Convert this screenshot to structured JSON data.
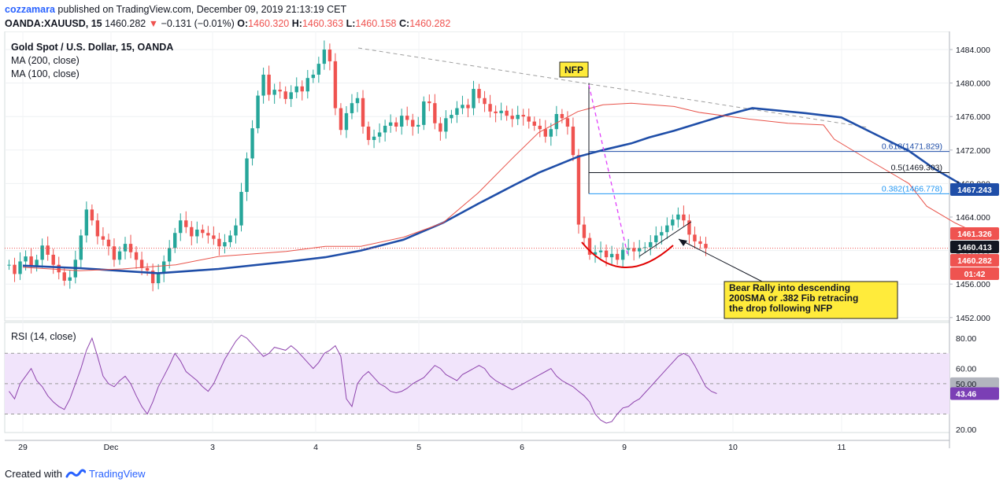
{
  "header": {
    "user": "cozzamara",
    "published_text": "published on TradingView.com, December 09, 2019 21:13:19 CET",
    "symbol": "OANDA:XAUUSD, 15",
    "last_price": "1460.282",
    "change": "−0.131 (−0.01%)",
    "o_label": "O:",
    "o_value": "1460.320",
    "h_label": "H:",
    "h_value": "1460.363",
    "l_label": "L:",
    "l_value": "1460.158",
    "c_label": "C:",
    "c_value": "1460.282"
  },
  "legend": {
    "title": "Gold Spot / U.S. Dollar, 15, OANDA",
    "ma200": "MA (200, close)",
    "ma100": "MA (100, close)",
    "rsi": "RSI (14, close)"
  },
  "footer": {
    "created_with": "Created with",
    "brand": "TradingView"
  },
  "colors": {
    "up": "#26a69a",
    "down": "#ef5350",
    "ma200": "#1f4ea8",
    "ma100": "#e8534a",
    "rsi_line": "#8e44ad",
    "rsi_band": "#f1e4fb",
    "fib_blue": "#1f4ea8",
    "nfp_box": "#ffeb3b",
    "annotation_box": "#ffeb3b",
    "cup": "#e00000",
    "nfp_line": "#e040fb"
  },
  "chart_data": [
    {
      "type": "candlestick",
      "title": "Gold Spot / U.S. Dollar, 15, OANDA",
      "ylim": [
        1450.6,
        1485.4
      ],
      "y_ticks": [
        "1484.000",
        "1480.000",
        "1476.000",
        "1472.000",
        "1468.000",
        "1464.000",
        "1460.000",
        "1456.000",
        "1452.000"
      ],
      "x_ticks": [
        "29",
        "Dec",
        "3",
        "4",
        "5",
        "6",
        "9",
        "10",
        "11"
      ],
      "series": [
        {
          "name": "MA (200, close)",
          "x": [
            0,
            1.6,
            3.8,
            5.5,
            7.5,
            8.5,
            9.5,
            10.7,
            11.8,
            12.8,
            13.8,
            14.5,
            15.6,
            16.3,
            17.1,
            17.6,
            18.3,
            19.6,
            20.5,
            22.0,
            23.0,
            23.9,
            24.9,
            25.6,
            26.5
          ],
          "y": [
            1458.2,
            1457.9,
            1457.3,
            1457.8,
            1458.7,
            1459.2,
            1460.0,
            1461.3,
            1463.3,
            1465.6,
            1467.8,
            1469.3,
            1471.2,
            1472.0,
            1472.8,
            1473.5,
            1474.3,
            1476.0,
            1477.0,
            1476.4,
            1475.9,
            1474.0,
            1471.9,
            1469.8,
            1467.6
          ]
        },
        {
          "name": "MA (100, close)",
          "x": [
            0,
            1.6,
            2.8,
            4.3,
            5.5,
            7.4,
            8.5,
            9.5,
            10.7,
            11.8,
            12.8,
            13.8,
            14.5,
            15.6,
            16.3,
            17.1,
            18.3,
            19.0,
            20.4,
            21.5,
            22.5,
            22.8,
            23.7,
            24.9,
            25.4,
            26.2,
            27.2
          ],
          "y": [
            1458.0,
            1457.6,
            1457.8,
            1458.3,
            1459.3,
            1459.9,
            1460.5,
            1460.5,
            1461.6,
            1463.3,
            1466.9,
            1471.2,
            1474.1,
            1476.6,
            1477.4,
            1477.6,
            1477.2,
            1476.5,
            1475.7,
            1475.2,
            1475.0,
            1473.3,
            1471.0,
            1468.0,
            1465.3,
            1463.3,
            1461.3
          ]
        }
      ],
      "closes": [
        1458.3,
        1457.2,
        1458.7,
        1459.3,
        1458.1,
        1458.9,
        1460.6,
        1459.5,
        1458.3,
        1457.4,
        1456.4,
        1456.8,
        1458.9,
        1461.8,
        1464.9,
        1463.6,
        1461.7,
        1461.3,
        1460.5,
        1458.9,
        1459.9,
        1460.8,
        1459.8,
        1458.9,
        1457.9,
        1457.6,
        1456.1,
        1457.3,
        1458.7,
        1460.3,
        1462.1,
        1463.6,
        1462.8,
        1461.7,
        1462.5,
        1462.1,
        1461.8,
        1461.4,
        1460.5,
        1461.0,
        1461.8,
        1463.0,
        1467.0,
        1471.0,
        1474.6,
        1478.5,
        1481.0,
        1478.6,
        1479.2,
        1479.0,
        1478.1,
        1478.9,
        1479.6,
        1479.0,
        1480.6,
        1481.0,
        1482.3,
        1484.0,
        1482.6,
        1477.0,
        1474.4,
        1476.4,
        1477.6,
        1478.2,
        1474.8,
        1473.2,
        1473.6,
        1474.1,
        1474.9,
        1475.3,
        1474.8,
        1476.1,
        1475.6,
        1474.8,
        1475.0,
        1477.8,
        1477.6,
        1475.2,
        1474.2,
        1475.8,
        1476.2,
        1477.0,
        1477.4,
        1477.0,
        1479.3,
        1478.2,
        1477.5,
        1476.6,
        1476.4,
        1476.7,
        1476.1,
        1475.7,
        1476.2,
        1476.0,
        1475.4,
        1474.9,
        1474.5,
        1473.6,
        1474.5,
        1476.3,
        1475.8,
        1474.8,
        1471.4,
        1463.1,
        1461.5,
        1459.5,
        1459.8,
        1460.0,
        1459.2,
        1459.6,
        1458.9,
        1460.1,
        1460.3,
        1459.9,
        1460.3,
        1460.4,
        1461.0,
        1461.8,
        1462.2,
        1463.0,
        1463.7,
        1464.3,
        1463.6,
        1461.9,
        1461.1,
        1460.8,
        1460.3
      ],
      "annotations": [
        {
          "label": "NFP",
          "x": 21.6,
          "y": 1481.5
        },
        {
          "label": "0.618(1471.829)",
          "price": 1471.829
        },
        {
          "label": "0.5(1469.303)",
          "price": 1469.303
        },
        {
          "label": "0.382(1466.778)",
          "price": 1466.778
        },
        {
          "label": "Bear Rally into descending 200SMA or .382 Fib retracing the drop following NFP",
          "lines": [
            "Bear Rally into descending",
            "200SMA or .382 Fib retracing",
            "the drop following NFP"
          ]
        }
      ],
      "price_labels": [
        {
          "value": "1467.243"
        },
        {
          "value": "1461.326"
        },
        {
          "value": "1460.413"
        },
        {
          "value": "1460.282"
        },
        {
          "value": "01:42"
        }
      ]
    },
    {
      "type": "line",
      "title": "RSI (14, close)",
      "ylim": [
        17,
        86
      ],
      "y_ticks": [
        "80.00",
        "60.00",
        "50.00",
        "20.00"
      ],
      "band": [
        30,
        70
      ],
      "series": [
        {
          "name": "RSI (14, close)",
          "value_label": "43.46",
          "y": [
            45,
            40,
            50,
            55,
            60,
            52,
            48,
            42,
            38,
            35,
            33,
            40,
            50,
            60,
            72,
            80,
            68,
            55,
            50,
            48,
            52,
            55,
            50,
            42,
            35,
            30,
            38,
            48,
            55,
            62,
            70,
            65,
            58,
            55,
            52,
            48,
            45,
            50,
            58,
            66,
            72,
            78,
            82,
            80,
            76,
            72,
            68,
            70,
            74,
            73,
            72,
            75,
            72,
            68,
            64,
            60,
            64,
            70,
            72,
            75,
            68,
            40,
            35,
            50,
            55,
            58,
            54,
            50,
            48,
            45,
            44,
            45,
            47,
            50,
            52,
            54,
            58,
            62,
            60,
            56,
            54,
            52,
            56,
            58,
            60,
            62,
            60,
            55,
            52,
            50,
            48,
            46,
            48,
            50,
            52,
            54,
            56,
            58,
            60,
            55,
            52,
            50,
            48,
            45,
            42,
            38,
            30,
            26,
            24,
            25,
            30,
            34,
            35,
            38,
            40,
            44,
            48,
            52,
            56,
            60,
            64,
            68,
            70,
            68,
            62,
            55,
            48,
            45,
            43.46
          ]
        }
      ]
    }
  ]
}
